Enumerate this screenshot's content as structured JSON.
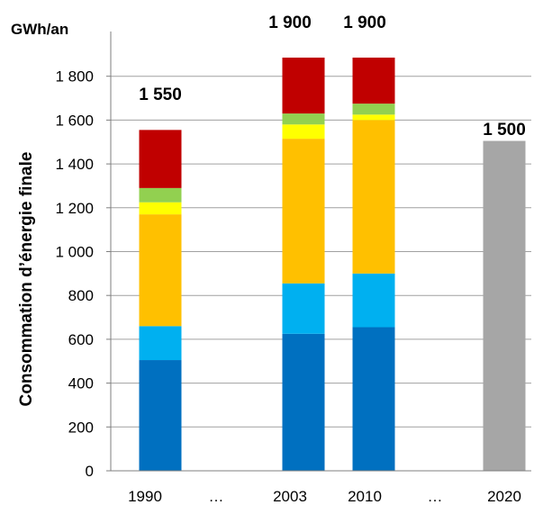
{
  "chart_data": {
    "type": "bar",
    "stacked": true,
    "unit_label": "GWh/an",
    "ylabel": "Consommation d’énergie finale",
    "ylim": [
      0,
      1800
    ],
    "yticks": [
      0,
      200,
      400,
      600,
      800,
      1000,
      1200,
      1400,
      1600,
      1800
    ],
    "ytick_labels": [
      "0",
      "200",
      "400",
      "600",
      "800",
      "1 000",
      "1 200",
      "1 400",
      "1 600",
      "1 800"
    ],
    "grid": true,
    "categories": [
      "1990",
      "…",
      "2003",
      "2010",
      "…",
      "2020"
    ],
    "series": [
      {
        "color": "#0070c0",
        "values": [
          505,
          null,
          625,
          655,
          null,
          null
        ]
      },
      {
        "color": "#00b0f0",
        "values": [
          155,
          null,
          230,
          245,
          null,
          null
        ]
      },
      {
        "color": "#ffc000",
        "values": [
          510,
          null,
          660,
          700,
          null,
          null
        ]
      },
      {
        "color": "#ffff00",
        "values": [
          55,
          null,
          65,
          25,
          null,
          null
        ]
      },
      {
        "color": "#92d050",
        "values": [
          65,
          null,
          50,
          50,
          null,
          null
        ]
      },
      {
        "color": "#c00000",
        "values": [
          265,
          null,
          255,
          210,
          null,
          null
        ]
      },
      {
        "color": "#a6a6a6",
        "values": [
          null,
          null,
          null,
          null,
          null,
          1505
        ]
      }
    ],
    "totals": [
      "1 550",
      "",
      "1 900",
      "1 900",
      "",
      "1 500"
    ]
  }
}
